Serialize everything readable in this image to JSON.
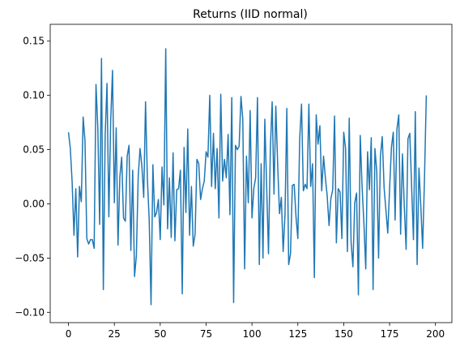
{
  "chart_data": {
    "type": "line",
    "title": "Returns (IID normal)",
    "xlabel": "",
    "ylabel": "",
    "xlim": [
      -9.95,
      208.95
    ],
    "ylim": [
      -0.1095,
      0.1655
    ],
    "xticks": [
      0,
      25,
      50,
      75,
      100,
      125,
      150,
      175,
      200
    ],
    "xtick_labels": [
      "0",
      "25",
      "50",
      "75",
      "100",
      "125",
      "150",
      "175",
      "200"
    ],
    "yticks": [
      -0.1,
      -0.05,
      0.0,
      0.05,
      0.1,
      0.15
    ],
    "ytick_labels": [
      "−0.10",
      "−0.05",
      "0.00",
      "0.05",
      "0.10",
      "0.15"
    ],
    "grid": false,
    "legend": "none",
    "line_color": "#1f77b4",
    "series": [
      {
        "values": [
          0.066,
          0.051,
          0.02,
          -0.029,
          0.014,
          -0.049,
          0.016,
          0.002,
          0.08,
          0.058,
          -0.032,
          -0.037,
          -0.033,
          -0.033,
          -0.041,
          0.11,
          0.07,
          -0.019,
          0.134,
          -0.079,
          0.063,
          0.111,
          -0.012,
          0.076,
          0.123,
          0.001,
          0.07,
          -0.038,
          0.025,
          0.043,
          -0.013,
          -0.016,
          0.044,
          0.054,
          -0.043,
          0.031,
          -0.067,
          -0.048,
          0.025,
          0.051,
          0.035,
          0.006,
          0.094,
          0.023,
          -0.015,
          -0.093,
          0.036,
          -0.012,
          -0.008,
          0.004,
          -0.033,
          0.034,
          -0.001,
          0.143,
          -0.023,
          0.024,
          -0.031,
          0.047,
          -0.034,
          0.013,
          0.014,
          0.031,
          -0.083,
          0.052,
          -0.008,
          0.069,
          -0.029,
          0.016,
          -0.039,
          -0.028,
          0.041,
          0.037,
          0.004,
          0.014,
          0.021,
          0.048,
          0.043,
          0.1,
          0.016,
          0.065,
          0.014,
          0.051,
          -0.013,
          0.101,
          0.021,
          0.041,
          0.024,
          0.064,
          -0.01,
          0.098,
          -0.091,
          0.054,
          0.05,
          0.053,
          0.099,
          0.078,
          -0.06,
          0.044,
          0.001,
          0.086,
          -0.013,
          0.014,
          0.024,
          0.098,
          -0.056,
          0.037,
          -0.05,
          0.078,
          0.016,
          -0.046,
          0.05,
          0.094,
          0.009,
          0.09,
          0.036,
          -0.009,
          0.006,
          -0.044,
          -0.01,
          0.088,
          -0.056,
          -0.046,
          0.017,
          0.018,
          -0.012,
          -0.032,
          0.06,
          0.092,
          0.012,
          0.018,
          0.014,
          0.092,
          0.016,
          0.037,
          -0.068,
          0.082,
          0.055,
          0.072,
          0.012,
          0.044,
          0.024,
          0.007,
          -0.02,
          0.005,
          0.013,
          0.081,
          -0.036,
          0.014,
          0.011,
          -0.032,
          0.066,
          0.051,
          -0.044,
          0.079,
          -0.035,
          -0.058,
          0.001,
          0.01,
          -0.084,
          0.063,
          0.016,
          -0.018,
          -0.06,
          0.048,
          0.013,
          0.061,
          -0.079,
          0.051,
          0.03,
          -0.05,
          0.044,
          0.062,
          0.015,
          -0.006,
          -0.027,
          0.014,
          0.052,
          0.066,
          -0.015,
          0.069,
          0.082,
          -0.028,
          0.046,
          -0.002,
          -0.042,
          0.06,
          0.065,
          0.016,
          -0.033,
          0.085,
          -0.056,
          0.033,
          -0.002,
          -0.041,
          0.023,
          0.1
        ]
      }
    ]
  }
}
